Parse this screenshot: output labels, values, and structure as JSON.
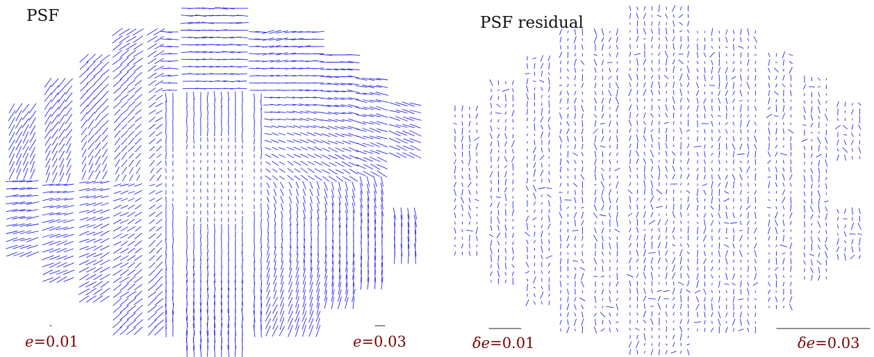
{
  "chart_data": [
    {
      "type": "whisker",
      "title": "PSF",
      "whisker_color": "#2222ee",
      "scale_color": "#7a0000",
      "field": {
        "shape": "circular",
        "layout": "mosaic of chips"
      },
      "scale_bars": [
        {
          "symbol": "e",
          "equals": "=",
          "value": "0.01",
          "magnitude": 0.01
        },
        {
          "symbol": "e",
          "equals": "=",
          "value": "0.03",
          "magnitude": 0.03
        }
      ]
    },
    {
      "type": "whisker",
      "title": "PSF residual",
      "whisker_color": "#2222ee",
      "scale_color": "#7a0000",
      "field": {
        "shape": "circular",
        "layout": "mosaic of chips"
      },
      "scale_bars": [
        {
          "symbol": "δe",
          "equals": "=",
          "value": "0.01",
          "magnitude": 0.01
        },
        {
          "symbol": "δe",
          "equals": "=",
          "value": "0.03",
          "magnitude": 0.03
        }
      ]
    }
  ]
}
